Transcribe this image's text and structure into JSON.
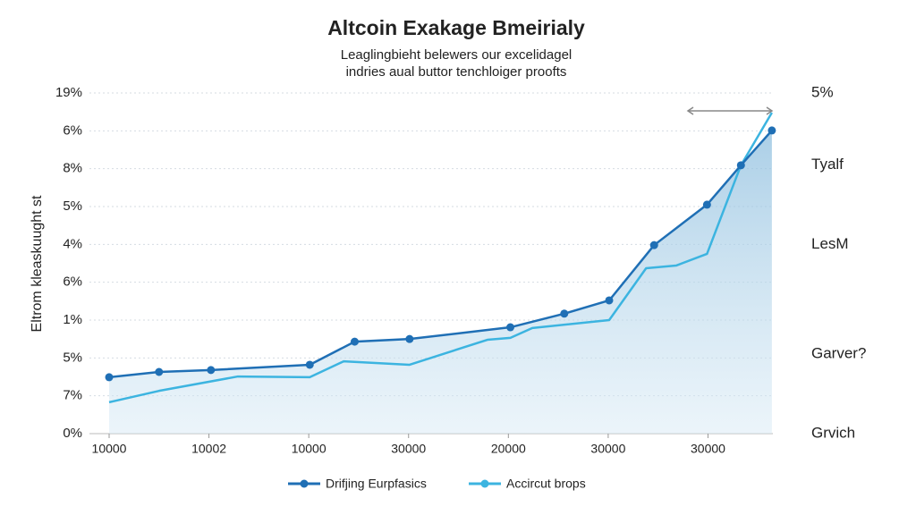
{
  "chart_data": {
    "type": "line",
    "title": "Altcoin Exakage Bmeirialy",
    "subtitle": [
      "Leaglingbieht belewers our excelidagel",
      "indries aual buttor tenchloiger proofts"
    ],
    "y_axis_label": "Eltrom kleaskuught st",
    "categories": [
      "10000",
      "10002",
      "10000",
      "30000",
      "20000",
      "30000",
      "30000"
    ],
    "xlim": [
      0,
      6.65
    ],
    "ylim": [
      0,
      9
    ],
    "yticks": [
      0,
      1,
      2,
      3,
      4,
      5,
      6,
      7,
      8,
      9
    ],
    "ytick_labels": [
      "0%",
      "7%",
      "5%",
      "1%",
      "6%",
      "4%",
      "5%",
      "8%",
      "6%",
      "19%"
    ],
    "grid": true,
    "right_annotations": [
      {
        "text": "5%",
        "y": 9
      },
      {
        "text": "Tyalf",
        "y": 7.1
      },
      {
        "text": "LesM",
        "y": 5
      },
      {
        "text": "Garver?",
        "y": 2.1
      },
      {
        "text": "Grvich",
        "y": 0
      }
    ],
    "series": [
      {
        "name": "Drifjing Eurpfasics",
        "color": "#1f6fb5",
        "markers": true,
        "x": [
          0,
          0.5,
          1.02,
          2.01,
          2.46,
          3.01,
          4.02,
          4.56,
          5.01,
          5.46,
          5.99,
          6.33,
          6.64
        ],
        "values": [
          1.49,
          1.63,
          1.68,
          1.82,
          2.43,
          2.5,
          2.81,
          3.17,
          3.52,
          4.98,
          6.05,
          7.09,
          8.01
        ]
      },
      {
        "name": "Accircut brops",
        "color": "#3cb4e0",
        "markers": false,
        "x": [
          0,
          0.5,
          1.29,
          2.01,
          2.35,
          3.01,
          3.79,
          4.02,
          4.24,
          5.01,
          5.38,
          5.68,
          5.99,
          6.33,
          6.64
        ],
        "values": [
          0.83,
          1.13,
          1.51,
          1.49,
          1.91,
          1.82,
          2.48,
          2.53,
          2.79,
          3.0,
          4.37,
          4.44,
          4.75,
          7.09,
          8.48
        ]
      }
    ]
  }
}
